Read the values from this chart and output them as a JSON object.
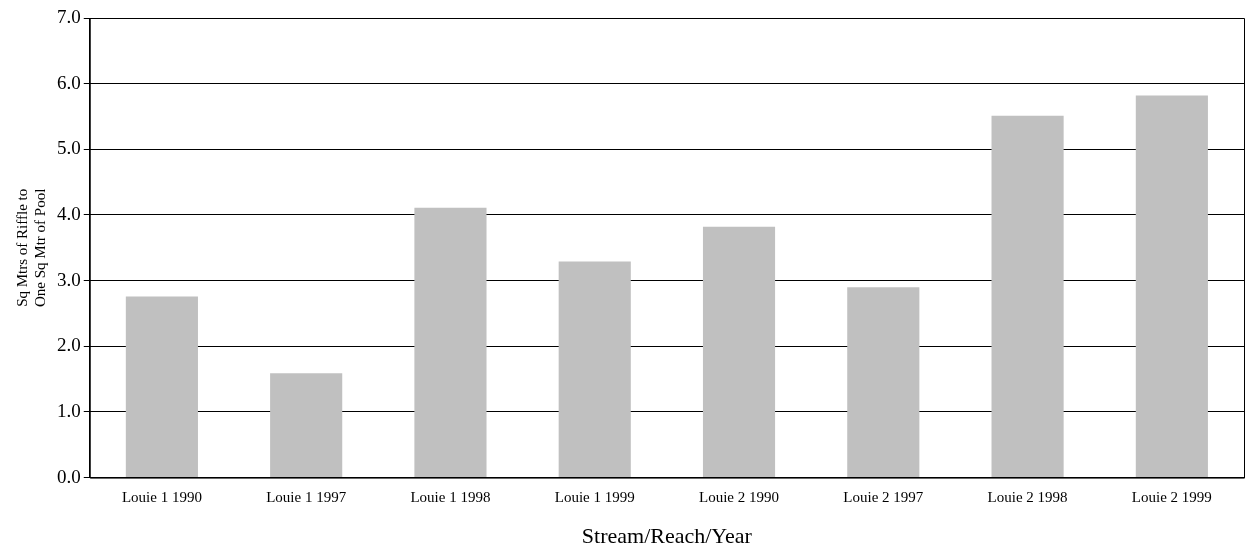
{
  "chart_data": {
    "type": "bar",
    "xlabel": "Stream/Reach/Year",
    "ylabel": "Sq Mtrs of Riffle to\nOne Sq Mtr of Pool",
    "categories": [
      "Louie 1 1990",
      "Louie 1 1997",
      "Louie 1 1998",
      "Louie 1 1999",
      "Louie 2 1990",
      "Louie 2 1997",
      "Louie 2 1998",
      "Louie 2 1999"
    ],
    "values": [
      2.76,
      1.59,
      4.11,
      3.29,
      3.82,
      2.9,
      5.51,
      5.82
    ],
    "color": "#c0c0c0",
    "ylim": [
      0,
      7
    ],
    "yticks": [
      {
        "value": 0,
        "label": "0.0"
      },
      {
        "value": 1,
        "label": "1.0"
      },
      {
        "value": 2,
        "label": "2.0"
      },
      {
        "value": 3,
        "label": "3.0"
      },
      {
        "value": 4,
        "label": "4.0"
      },
      {
        "value": 5,
        "label": "5.0"
      },
      {
        "value": 6,
        "label": "6.0"
      },
      {
        "value": 7,
        "label": "7.0"
      }
    ],
    "grid": "y",
    "legend": false
  }
}
